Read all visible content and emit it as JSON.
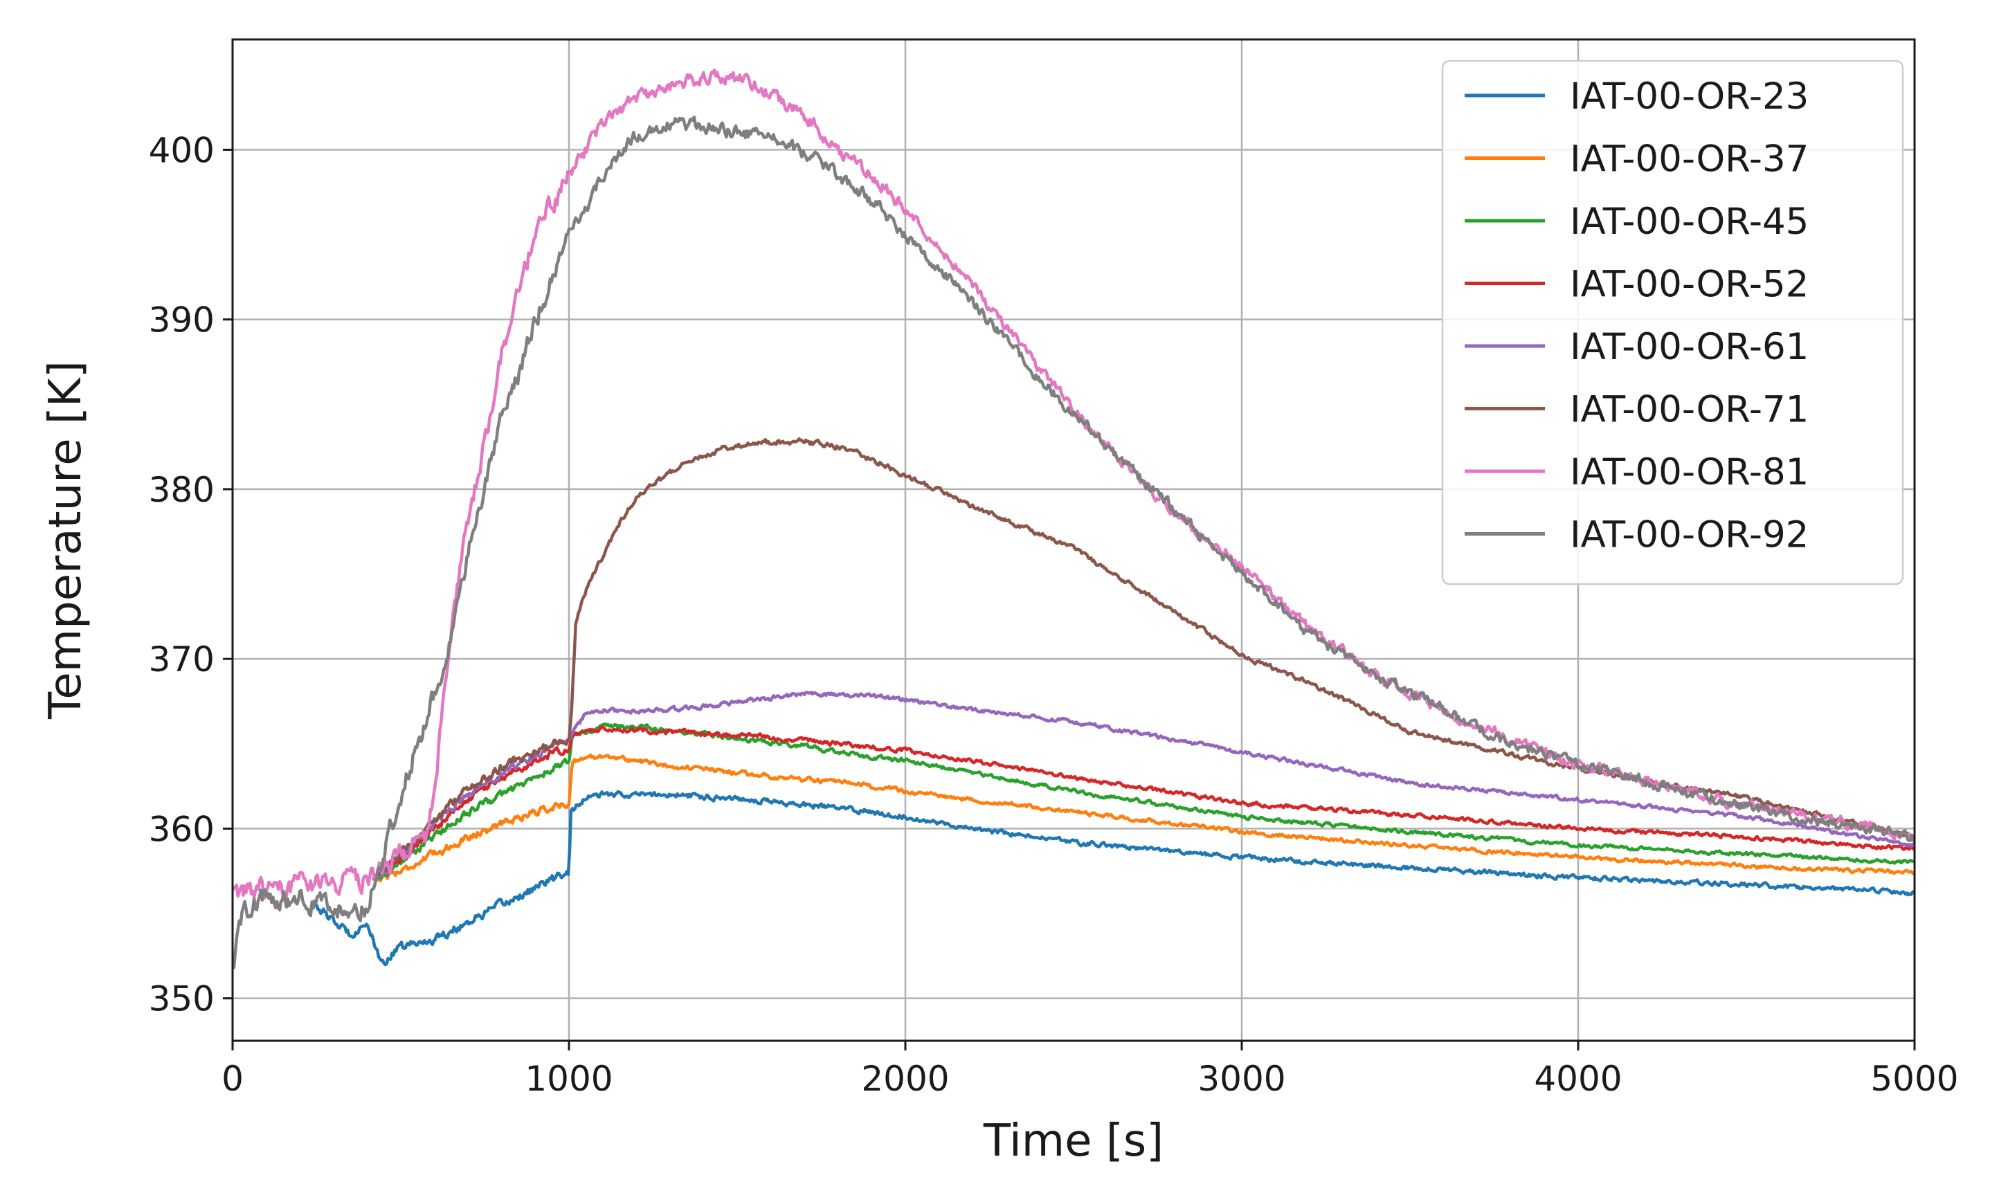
{
  "chart_data": {
    "type": "line",
    "title": "",
    "xlabel": "Time [s]",
    "ylabel": "Temperature [K]",
    "xlim": [
      0,
      5000
    ],
    "ylim": [
      347.5,
      406.5
    ],
    "xticks": [
      0,
      1000,
      2000,
      3000,
      4000,
      5000
    ],
    "yticks": [
      350,
      360,
      370,
      380,
      390,
      400
    ],
    "grid": true,
    "legend_position": "top-right",
    "series": [
      {
        "name": "IAT-00-OR-23",
        "color": "#1f77b4",
        "noise": 0.3,
        "points": [
          [
            250,
            355.5
          ],
          [
            300,
            354.5
          ],
          [
            350,
            353.8
          ],
          [
            400,
            354.5
          ],
          [
            440,
            352.0
          ],
          [
            500,
            353.0
          ],
          [
            600,
            353.5
          ],
          [
            700,
            354.5
          ],
          [
            800,
            355.5
          ],
          [
            900,
            356.5
          ],
          [
            1000,
            357.5
          ],
          [
            1005,
            361.0
          ],
          [
            1050,
            361.8
          ],
          [
            1100,
            362.0
          ],
          [
            1200,
            362.0
          ],
          [
            1300,
            362.0
          ],
          [
            1400,
            361.9
          ],
          [
            1500,
            361.8
          ],
          [
            1600,
            361.6
          ],
          [
            1700,
            361.4
          ],
          [
            1800,
            361.2
          ],
          [
            1900,
            361.0
          ],
          [
            2000,
            360.7
          ],
          [
            2200,
            360.0
          ],
          [
            2500,
            359.2
          ],
          [
            3000,
            358.3
          ],
          [
            3500,
            357.7
          ],
          [
            4000,
            357.1
          ],
          [
            4500,
            356.7
          ],
          [
            5000,
            356.2
          ]
        ]
      },
      {
        "name": "IAT-00-OR-37",
        "color": "#ff7f0e",
        "noise": 0.25,
        "points": [
          [
            420,
            357.0
          ],
          [
            500,
            357.5
          ],
          [
            600,
            358.5
          ],
          [
            700,
            359.5
          ],
          [
            800,
            360.3
          ],
          [
            900,
            361.0
          ],
          [
            1000,
            361.5
          ],
          [
            1010,
            364.0
          ],
          [
            1100,
            364.3
          ],
          [
            1200,
            364.0
          ],
          [
            1300,
            363.7
          ],
          [
            1400,
            363.5
          ],
          [
            1500,
            363.3
          ],
          [
            1600,
            363.1
          ],
          [
            1700,
            362.9
          ],
          [
            1800,
            362.7
          ],
          [
            1900,
            362.5
          ],
          [
            2000,
            362.2
          ],
          [
            2200,
            361.7
          ],
          [
            2500,
            361.0
          ],
          [
            3000,
            359.8
          ],
          [
            3500,
            359.0
          ],
          [
            4000,
            358.3
          ],
          [
            4500,
            357.8
          ],
          [
            5000,
            357.4
          ]
        ]
      },
      {
        "name": "IAT-00-OR-45",
        "color": "#2ca02c",
        "noise": 0.25,
        "points": [
          [
            420,
            357.0
          ],
          [
            500,
            358.0
          ],
          [
            600,
            359.5
          ],
          [
            700,
            361.0
          ],
          [
            800,
            362.0
          ],
          [
            900,
            363.0
          ],
          [
            1000,
            364.0
          ],
          [
            1010,
            365.5
          ],
          [
            1100,
            366.0
          ],
          [
            1200,
            366.0
          ],
          [
            1300,
            365.8
          ],
          [
            1400,
            365.6
          ],
          [
            1500,
            365.3
          ],
          [
            1600,
            365.1
          ],
          [
            1700,
            364.9
          ],
          [
            1800,
            364.5
          ],
          [
            1900,
            364.2
          ],
          [
            2000,
            364.0
          ],
          [
            2200,
            363.3
          ],
          [
            2500,
            362.2
          ],
          [
            3000,
            360.7
          ],
          [
            3500,
            359.8
          ],
          [
            4000,
            359.0
          ],
          [
            4500,
            358.5
          ],
          [
            5000,
            358.0
          ]
        ]
      },
      {
        "name": "IAT-00-OR-52",
        "color": "#d62728",
        "noise": 0.25,
        "points": [
          [
            420,
            357.0
          ],
          [
            500,
            358.2
          ],
          [
            600,
            360.0
          ],
          [
            700,
            361.7
          ],
          [
            800,
            363.0
          ],
          [
            900,
            364.0
          ],
          [
            1000,
            364.8
          ],
          [
            1010,
            365.5
          ],
          [
            1100,
            365.9
          ],
          [
            1200,
            365.8
          ],
          [
            1300,
            365.7
          ],
          [
            1400,
            365.6
          ],
          [
            1500,
            365.5
          ],
          [
            1600,
            365.4
          ],
          [
            1700,
            365.2
          ],
          [
            1800,
            365.0
          ],
          [
            1900,
            364.8
          ],
          [
            2000,
            364.6
          ],
          [
            2200,
            364.0
          ],
          [
            2500,
            363.0
          ],
          [
            3000,
            361.5
          ],
          [
            3500,
            360.8
          ],
          [
            4000,
            360.0
          ],
          [
            4500,
            359.5
          ],
          [
            5000,
            358.8
          ]
        ]
      },
      {
        "name": "IAT-00-OR-61",
        "color": "#9467bd",
        "noise": 0.25,
        "points": [
          [
            420,
            357.0
          ],
          [
            500,
            358.3
          ],
          [
            600,
            360.3
          ],
          [
            700,
            362.0
          ],
          [
            800,
            363.3
          ],
          [
            900,
            364.3
          ],
          [
            1000,
            365.2
          ],
          [
            1050,
            366.8
          ],
          [
            1100,
            367.0
          ],
          [
            1200,
            366.9
          ],
          [
            1300,
            367.0
          ],
          [
            1400,
            367.2
          ],
          [
            1500,
            367.5
          ],
          [
            1600,
            367.7
          ],
          [
            1700,
            368.0
          ],
          [
            1800,
            367.9
          ],
          [
            1900,
            367.8
          ],
          [
            2000,
            367.6
          ],
          [
            2200,
            367.0
          ],
          [
            2500,
            366.3
          ],
          [
            3000,
            364.5
          ],
          [
            3500,
            362.7
          ],
          [
            4000,
            361.7
          ],
          [
            4500,
            360.7
          ],
          [
            5000,
            359.0
          ]
        ]
      },
      {
        "name": "IAT-00-OR-71",
        "color": "#8c564b",
        "noise": 0.3,
        "points": [
          [
            420,
            357.0
          ],
          [
            500,
            358.5
          ],
          [
            600,
            360.5
          ],
          [
            700,
            362.3
          ],
          [
            800,
            363.6
          ],
          [
            900,
            364.5
          ],
          [
            1000,
            365.3
          ],
          [
            1008,
            367.0
          ],
          [
            1020,
            372.0
          ],
          [
            1050,
            374.0
          ],
          [
            1100,
            376.0
          ],
          [
            1150,
            378.0
          ],
          [
            1200,
            379.5
          ],
          [
            1300,
            381.0
          ],
          [
            1400,
            382.0
          ],
          [
            1500,
            382.6
          ],
          [
            1600,
            382.8
          ],
          [
            1700,
            382.8
          ],
          [
            1800,
            382.5
          ],
          [
            1900,
            381.8
          ],
          [
            2000,
            380.8
          ],
          [
            2200,
            379.0
          ],
          [
            2500,
            376.5
          ],
          [
            2800,
            372.8
          ],
          [
            3000,
            370.2
          ],
          [
            3200,
            368.6
          ],
          [
            3500,
            365.7
          ],
          [
            4000,
            363.5
          ],
          [
            4500,
            361.8
          ],
          [
            5000,
            359.5
          ]
        ]
      },
      {
        "name": "IAT-00-OR-81",
        "color": "#e377c2",
        "noise": 0.7,
        "points": [
          [
            0,
            356.0
          ],
          [
            100,
            356.5
          ],
          [
            200,
            356.7
          ],
          [
            300,
            356.8
          ],
          [
            400,
            357.0
          ],
          [
            500,
            358.5
          ],
          [
            570,
            359.0
          ],
          [
            600,
            362.0
          ],
          [
            630,
            368.0
          ],
          [
            660,
            373.0
          ],
          [
            700,
            378.0
          ],
          [
            800,
            388.0
          ],
          [
            900,
            395.0
          ],
          [
            1000,
            398.5
          ],
          [
            1100,
            401.5
          ],
          [
            1200,
            403.0
          ],
          [
            1300,
            403.8
          ],
          [
            1400,
            404.2
          ],
          [
            1500,
            404.2
          ],
          [
            1600,
            403.3
          ],
          [
            1700,
            402.0
          ],
          [
            1800,
            400.0
          ],
          [
            1900,
            398.5
          ],
          [
            2000,
            396.5
          ],
          [
            2200,
            392.0
          ],
          [
            2400,
            387.0
          ],
          [
            2600,
            382.5
          ],
          [
            2800,
            378.5
          ],
          [
            3000,
            375.5
          ],
          [
            3200,
            371.8
          ],
          [
            3400,
            369.0
          ],
          [
            3600,
            367.0
          ],
          [
            3800,
            365.3
          ],
          [
            4000,
            363.8
          ],
          [
            4200,
            362.8
          ],
          [
            4500,
            361.3
          ],
          [
            4800,
            360.3
          ],
          [
            5000,
            359.6
          ]
        ]
      },
      {
        "name": "IAT-00-OR-92",
        "color": "#7f7f7f",
        "noise": 0.7,
        "points": [
          [
            0,
            351.5
          ],
          [
            30,
            355.0
          ],
          [
            100,
            356.0
          ],
          [
            200,
            355.8
          ],
          [
            300,
            355.3
          ],
          [
            400,
            355.5
          ],
          [
            450,
            358.5
          ],
          [
            500,
            362.0
          ],
          [
            550,
            365.0
          ],
          [
            600,
            368.0
          ],
          [
            650,
            371.5
          ],
          [
            700,
            376.0
          ],
          [
            800,
            384.0
          ],
          [
            900,
            390.0
          ],
          [
            1000,
            394.8
          ],
          [
            1100,
            398.5
          ],
          [
            1200,
            400.8
          ],
          [
            1300,
            401.5
          ],
          [
            1400,
            401.5
          ],
          [
            1500,
            401.0
          ],
          [
            1600,
            400.8
          ],
          [
            1700,
            399.8
          ],
          [
            1800,
            398.5
          ],
          [
            1900,
            397.0
          ],
          [
            2000,
            395.0
          ],
          [
            2200,
            391.0
          ],
          [
            2400,
            386.5
          ],
          [
            2600,
            382.5
          ],
          [
            2800,
            378.8
          ],
          [
            3000,
            375.0
          ],
          [
            3200,
            371.5
          ],
          [
            3400,
            369.0
          ],
          [
            3600,
            367.0
          ],
          [
            3800,
            365.0
          ],
          [
            4000,
            363.8
          ],
          [
            4200,
            362.8
          ],
          [
            4500,
            361.3
          ],
          [
            4800,
            360.2
          ],
          [
            5000,
            359.5
          ]
        ]
      }
    ]
  }
}
